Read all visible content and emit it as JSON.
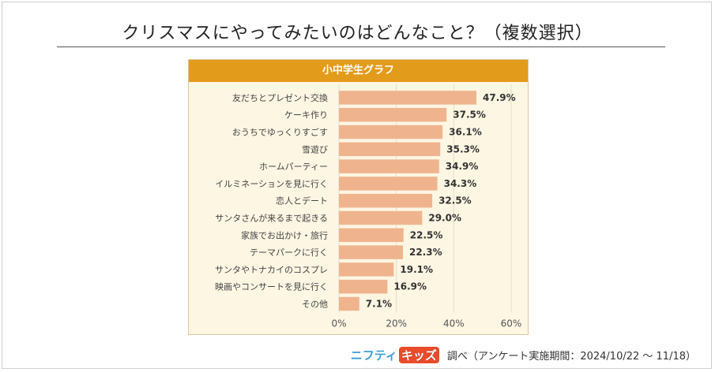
{
  "title": "クリスマスにやってみたいのはどんなこと？（複数選択）",
  "chart_data": {
    "type": "bar",
    "orientation": "horizontal",
    "title": "小中学生グラフ",
    "categories": [
      "友だちとプレゼント交換",
      "ケーキ作り",
      "おうちでゆっくりすごす",
      "雪遊び",
      "ホームパーティー",
      "イルミネーションを見に行く",
      "恋人とデート",
      "サンタさんが来るまで起きる",
      "家族でお出かけ・旅行",
      "テーマパークに行く",
      "サンタやトナカイのコスプレ",
      "映画やコンサートを見に行く",
      "その他"
    ],
    "values": [
      47.9,
      37.5,
      36.1,
      35.3,
      34.9,
      34.3,
      32.5,
      29.0,
      22.5,
      22.3,
      19.1,
      16.9,
      7.1
    ],
    "value_labels": [
      "47.9%",
      "37.5%",
      "36.1%",
      "35.3%",
      "34.9%",
      "34.3%",
      "32.5%",
      "29.0%",
      "22.5%",
      "22.3%",
      "19.1%",
      "16.9%",
      "7.1%"
    ],
    "xticks": [
      "0%",
      "20%",
      "40%",
      "60%"
    ],
    "xlim": [
      0,
      60
    ],
    "grid": true,
    "colors": {
      "bar": "#efb48e",
      "header": "#e39b1b",
      "background": "#fdf6e3",
      "grid": "#e2dccb"
    }
  },
  "footer": {
    "logo_part1": "ニフティ",
    "logo_part2": "キッズ",
    "note": "調べ（アンケート実施期間：2024/10/22 ～ 11/18）"
  }
}
